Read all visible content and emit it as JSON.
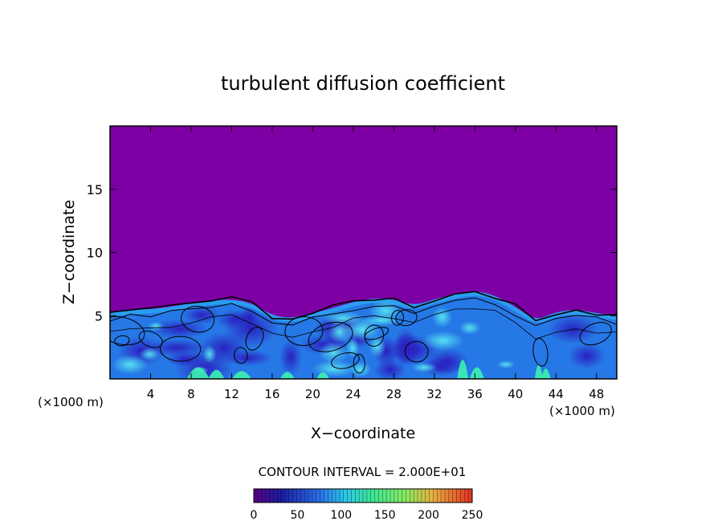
{
  "chart_data": {
    "type": "heatmap",
    "title": "turbulent diffusion coefficient",
    "xlabel": "X−coordinate",
    "ylabel": "Z−coordinate",
    "x_unit_left": "(×1000 m)",
    "x_unit_right": "(×1000 m)",
    "xlim": [
      0,
      50
    ],
    "ylim": [
      0,
      20
    ],
    "xticks": [
      4,
      8,
      12,
      16,
      20,
      24,
      28,
      32,
      36,
      40,
      44,
      48
    ],
    "yticks": [
      5,
      10,
      15
    ],
    "contour_interval_text": "CONTOUR INTERVAL = 2.000E+01",
    "colorbar": {
      "min": 0,
      "max": 250,
      "ticks": [
        0,
        50,
        100,
        150,
        200,
        250
      ]
    },
    "background_value": 0,
    "turbulent_layer_top": [
      {
        "x": 0,
        "z": 5.2
      },
      {
        "x": 2,
        "z": 5.5
      },
      {
        "x": 4,
        "z": 5.5
      },
      {
        "x": 6,
        "z": 5.7
      },
      {
        "x": 8,
        "z": 6.0
      },
      {
        "x": 10,
        "z": 6.2
      },
      {
        "x": 12,
        "z": 6.3
      },
      {
        "x": 14,
        "z": 6.0
      },
      {
        "x": 16,
        "z": 5.0
      },
      {
        "x": 18,
        "z": 4.8
      },
      {
        "x": 20,
        "z": 5.2
      },
      {
        "x": 22,
        "z": 5.6
      },
      {
        "x": 24,
        "z": 6.1
      },
      {
        "x": 26,
        "z": 6.4
      },
      {
        "x": 28,
        "z": 6.3
      },
      {
        "x": 30,
        "z": 5.8
      },
      {
        "x": 32,
        "z": 6.3
      },
      {
        "x": 34,
        "z": 6.7
      },
      {
        "x": 36,
        "z": 7.0
      },
      {
        "x": 38,
        "z": 6.6
      },
      {
        "x": 40,
        "z": 5.7
      },
      {
        "x": 42,
        "z": 4.6
      },
      {
        "x": 44,
        "z": 5.3
      },
      {
        "x": 46,
        "z": 5.5
      },
      {
        "x": 48,
        "z": 5.2
      },
      {
        "x": 50,
        "z": 5.0
      }
    ],
    "colors": {
      "background": "#7d00a5",
      "low": "#1f2fd8",
      "mid": "#2a9df0",
      "high": "#3df0b0",
      "contour": "#000000"
    }
  }
}
